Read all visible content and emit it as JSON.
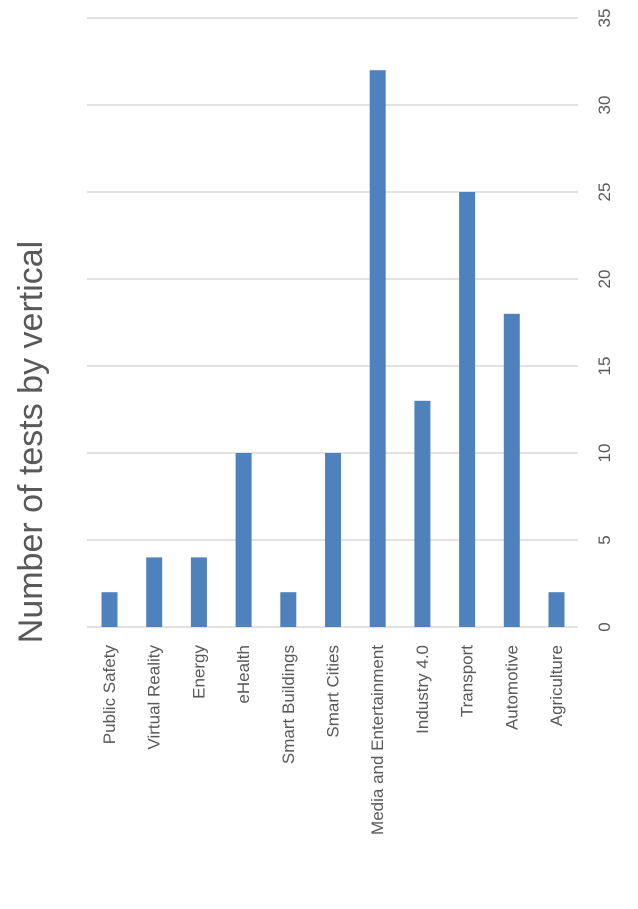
{
  "chart_data": {
    "type": "bar",
    "title": "Number of tests by vertical",
    "categories": [
      "Public Safety",
      "Virtual Reality",
      "Energy",
      "eHealth",
      "Smart Buildings",
      "Smart Cities",
      "Media and Entertainment",
      "Industry 4.0",
      "Transport",
      "Automotive",
      "Agriculture"
    ],
    "values": [
      2,
      4,
      4,
      10,
      2,
      10,
      32,
      13,
      25,
      18,
      2
    ],
    "ylim": [
      0,
      35
    ],
    "yticks": [
      0,
      5,
      10,
      15,
      20,
      25,
      30,
      35
    ],
    "grid": true,
    "orientation": "rotated-90-clockwise",
    "colors": {
      "bar": "#4f81bd",
      "grid": "#d9d9d9",
      "text": "#595959"
    }
  }
}
